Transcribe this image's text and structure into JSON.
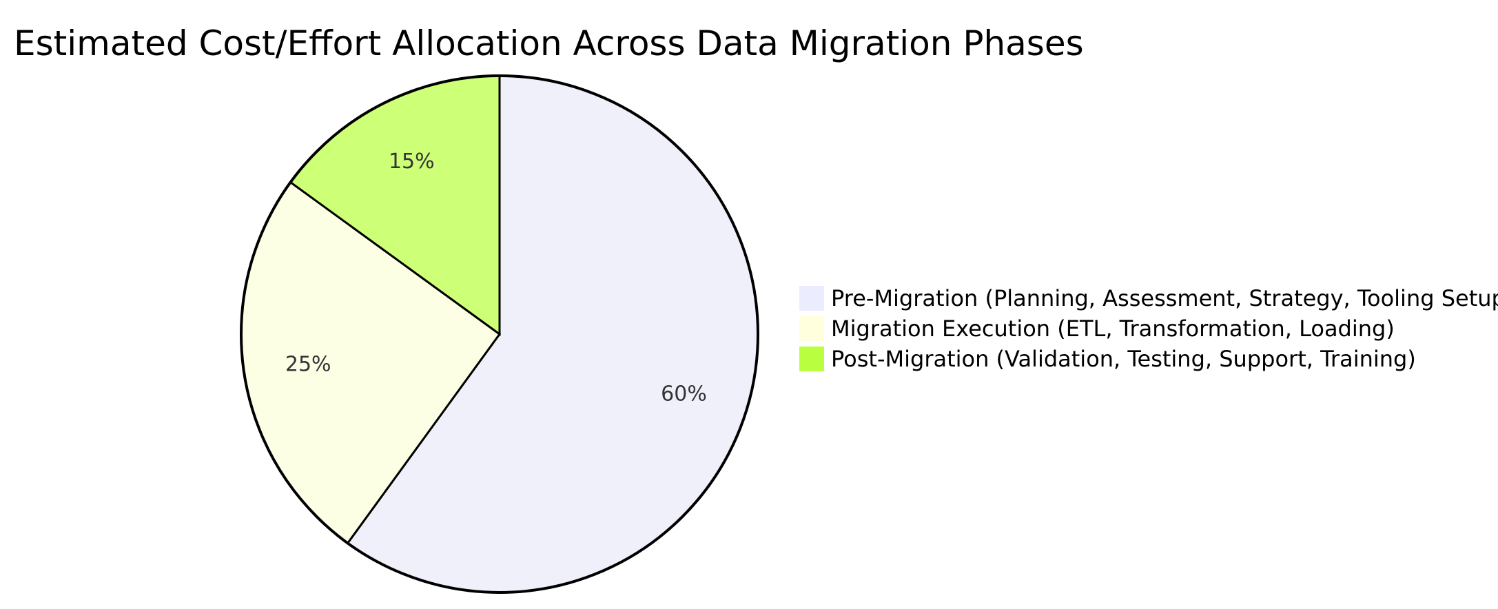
{
  "chart_data": {
    "type": "pie",
    "title": "Estimated Cost/Effort Allocation Across Data Migration Phases",
    "categories": [
      "Pre-Migration (Planning, Assessment, Strategy, Tooling Setup)",
      "Migration Execution (ETL, Transformation, Loading)",
      "Post-Migration (Validation, Testing, Support, Training)"
    ],
    "values": [
      60,
      25,
      15
    ],
    "value_labels": [
      "60%",
      "25%",
      "15%"
    ],
    "colors": [
      "#ececff",
      "#ffffde",
      "#b9ff40"
    ],
    "slice_colors": [
      "#f0f0fb",
      "#fdffe4",
      "#cdff77"
    ],
    "legend_position": "right"
  }
}
